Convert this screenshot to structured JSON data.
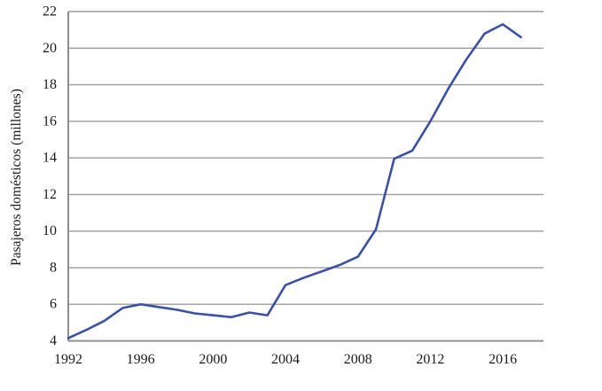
{
  "chart_data": {
    "type": "line",
    "title": "",
    "xlabel": "",
    "ylabel": "Pasajeros domésticos (millones)",
    "x": [
      1992,
      1993,
      1994,
      1995,
      1996,
      1997,
      1998,
      1999,
      2000,
      2001,
      2002,
      2003,
      2004,
      2005,
      2006,
      2007,
      2008,
      2009,
      2010,
      2011,
      2012,
      2013,
      2014,
      2015,
      2016,
      2017
    ],
    "series": [
      {
        "name": "Pasajeros domésticos",
        "values": [
          4.15,
          4.6,
          5.1,
          5.8,
          6.0,
          5.85,
          5.7,
          5.5,
          5.4,
          5.3,
          5.55,
          5.4,
          7.05,
          7.45,
          7.8,
          8.15,
          8.6,
          10.1,
          13.95,
          14.4,
          16.0,
          17.8,
          19.4,
          20.8,
          21.3,
          20.6
        ]
      }
    ],
    "ylim": [
      4,
      22
    ],
    "ytick_step": 2,
    "yticks": [
      4,
      6,
      8,
      10,
      12,
      14,
      16,
      18,
      20,
      22
    ],
    "xticks": [
      1992,
      1996,
      2000,
      2004,
      2008,
      2012,
      2016
    ],
    "grid": "horizontal",
    "legend_position": "none",
    "colors": {
      "line": "#3B51A6",
      "grid": "#9C9C9C",
      "axis": "#8F8F8F",
      "text": "#1A1A1A",
      "background": "#FFFFFF"
    }
  }
}
